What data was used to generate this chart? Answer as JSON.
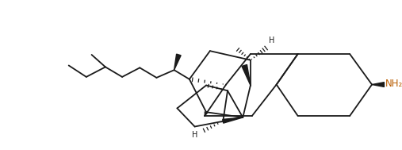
{
  "bg_color": "#ffffff",
  "line_color": "#1a1a1a",
  "nh2_color": "#b85c00",
  "figsize": [
    5.07,
    1.89
  ],
  "dpi": 100,
  "xlim": [
    0,
    507
  ],
  "ylim": [
    0,
    189
  ]
}
